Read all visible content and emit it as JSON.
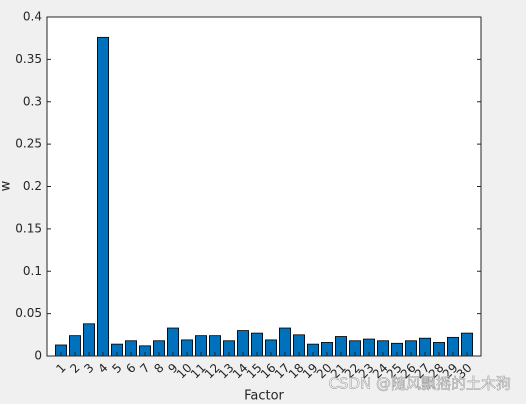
{
  "chart_data": {
    "type": "bar",
    "xlabel": "Factor",
    "ylabel": "w",
    "categories": [
      "1",
      "2",
      "3",
      "4",
      "5",
      "6",
      "7",
      "8",
      "9",
      "10",
      "11",
      "12",
      "13",
      "14",
      "15",
      "16",
      "17",
      "18",
      "19",
      "20",
      "21",
      "22",
      "23",
      "24",
      "25",
      "26",
      "27",
      "28",
      "29",
      "30"
    ],
    "values": [
      0.013,
      0.024,
      0.038,
      0.376,
      0.014,
      0.018,
      0.012,
      0.018,
      0.033,
      0.019,
      0.024,
      0.024,
      0.018,
      0.03,
      0.027,
      0.019,
      0.033,
      0.025,
      0.014,
      0.016,
      0.023,
      0.018,
      0.02,
      0.018,
      0.015,
      0.018,
      0.021,
      0.016,
      0.022,
      0.027
    ],
    "color": "#0072bd",
    "ylim": [
      0,
      0.4
    ],
    "yticks": [
      0,
      0.05,
      0.1,
      0.15,
      0.2,
      0.25,
      0.3,
      0.35,
      0.4
    ],
    "grid": false,
    "watermark": "CSDN @随风飘摇的土木狗"
  }
}
